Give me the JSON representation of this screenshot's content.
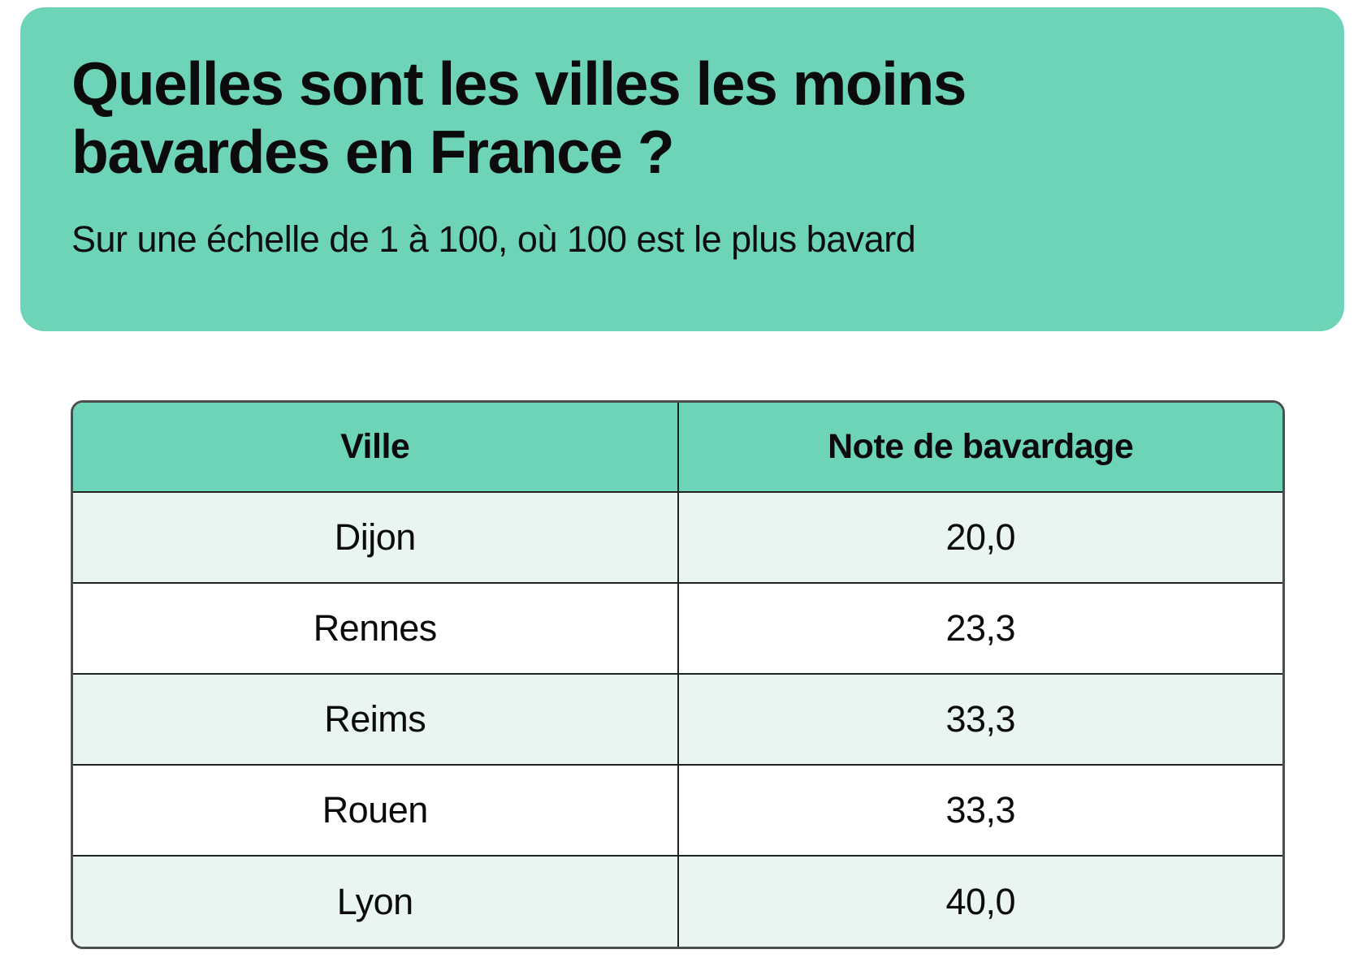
{
  "colors": {
    "accent_teal": "#6dd4b8",
    "row_alt_mint": "#eaf5f1",
    "row_white": "#ffffff",
    "text": "#0b0b0b",
    "table_outer_border": "#4a4f4e",
    "table_inner_border": "#1e2322"
  },
  "hero": {
    "title": "Quelles sont les villes les moins bavardes en France ?",
    "title_line1": "Quelles sont les villes les moins",
    "title_line2": "bavardes en France ?",
    "subtitle": "Sur une échelle de 1 à 100, où 100 est le plus bavard"
  },
  "table": {
    "columns": [
      "Ville",
      "Note de bavardage"
    ],
    "rows": [
      {
        "ville": "Dijon",
        "note": "20,0"
      },
      {
        "ville": "Rennes",
        "note": "23,3"
      },
      {
        "ville": "Reims",
        "note": "33,3"
      },
      {
        "ville": "Rouen",
        "note": "33,3"
      },
      {
        "ville": "Lyon",
        "note": "40,0"
      }
    ]
  },
  "chart_data": {
    "type": "table",
    "title": "Quelles sont les villes les moins bavardes en France ?",
    "subtitle": "Sur une échelle de 1 à 100, où 100 est le plus bavard",
    "columns": [
      "Ville",
      "Note de bavardage"
    ],
    "rows": [
      [
        "Dijon",
        20.0
      ],
      [
        "Rennes",
        23.3
      ],
      [
        "Reims",
        33.3
      ],
      [
        "Rouen",
        33.3
      ],
      [
        "Lyon",
        40.0
      ]
    ],
    "scale_min": 1,
    "scale_max": 100,
    "value_format": "decimal-comma"
  }
}
